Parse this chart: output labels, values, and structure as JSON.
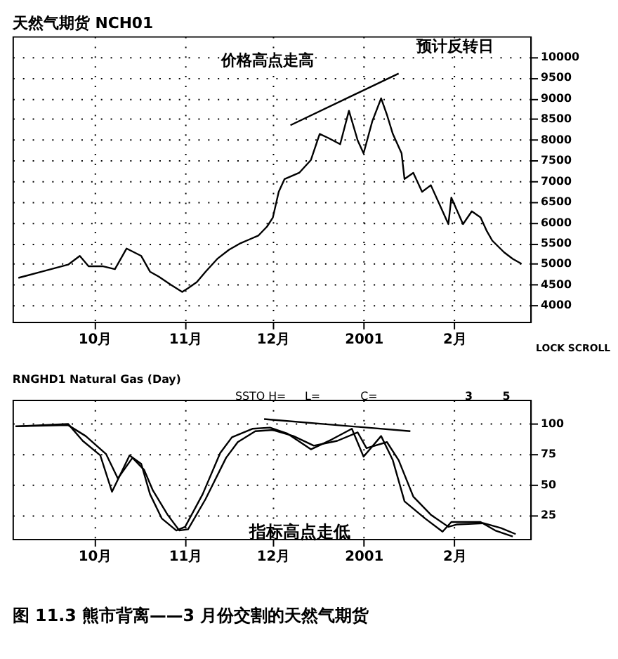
{
  "chart_data": [
    {
      "type": "line",
      "title": "天然气期货 NCH01",
      "annotations": [
        "价格高点走高",
        "预计反转日",
        "LOCK SCROLL"
      ],
      "xlim": [
        "2000-09-03",
        "2001-02-27"
      ],
      "xticks": [
        {
          "value": "2000-10-01",
          "label": "10月"
        },
        {
          "value": "2000-11-01",
          "label": "11月"
        },
        {
          "value": "2000-12-01",
          "label": "12月"
        },
        {
          "value": "2001-01-01",
          "label": "2001"
        },
        {
          "value": "2001-02-01",
          "label": "2月"
        }
      ],
      "ylim": [
        3600,
        10500
      ],
      "yticks": [
        4000,
        4500,
        5000,
        5500,
        6000,
        6500,
        7000,
        7500,
        8000,
        8500,
        9000,
        9500,
        10000
      ],
      "grid": true,
      "series": [
        {
          "color": "#000000",
          "x": [
            "2000-09-05",
            "2000-09-13",
            "2000-09-22",
            "2000-09-26",
            "2000-09-29",
            "2000-10-04",
            "2000-10-08",
            "2000-10-12",
            "2000-10-17",
            "2000-10-20",
            "2000-10-23",
            "2000-10-27",
            "2000-10-31",
            "2000-11-02",
            "2000-11-05",
            "2000-11-08",
            "2000-11-12",
            "2000-11-16",
            "2000-11-20",
            "2000-11-23",
            "2000-11-26",
            "2000-11-29",
            "2000-12-01",
            "2000-12-03",
            "2000-12-05",
            "2000-12-10",
            "2000-12-14",
            "2000-12-17",
            "2000-12-20",
            "2000-12-24",
            "2000-12-27",
            "2000-12-30",
            "2001-01-01",
            "2001-01-04",
            "2001-01-07",
            "2001-01-09",
            "2001-01-11",
            "2001-01-14",
            "2001-01-15",
            "2001-01-18",
            "2001-01-21",
            "2001-01-24",
            "2001-01-27",
            "2001-01-30",
            "2001-01-31",
            "2001-02-04",
            "2001-02-07",
            "2001-02-10",
            "2001-02-12",
            "2001-02-14",
            "2001-02-18",
            "2001-02-21",
            "2001-02-24"
          ],
          "values": [
            4660,
            4810,
            4980,
            5190,
            4940,
            4940,
            4870,
            5370,
            5190,
            4810,
            4690,
            4500,
            4320,
            4410,
            4560,
            4810,
            5120,
            5340,
            5500,
            5590,
            5680,
            5900,
            6120,
            6740,
            7050,
            7200,
            7510,
            8140,
            8040,
            7890,
            8700,
            7980,
            7670,
            8450,
            9000,
            8600,
            8140,
            7670,
            7050,
            7200,
            6740,
            6900,
            6430,
            5960,
            6600,
            5960,
            6270,
            6120,
            5810,
            5560,
            5280,
            5120,
            5000
          ]
        },
        {
          "type": "line",
          "color": "#000000",
          "x": [
            "2000-12-07",
            "2001-01-13"
          ],
          "values": [
            8350,
            9600
          ]
        }
      ]
    },
    {
      "type": "line",
      "title": "RNGHD1 Natural Gas (Day)",
      "annotations": [
        "SSTO H=",
        "L=",
        "C=",
        "3",
        "5",
        "指标高点走低",
        "图 11.3 熊市背离——3 月份交割的天然气期货"
      ],
      "xlim": [
        "2000-09-03",
        "2001-02-27"
      ],
      "xticks": [
        {
          "value": "2000-10-01",
          "label": "10月"
        },
        {
          "value": "2000-11-01",
          "label": "11月"
        },
        {
          "value": "2000-12-01",
          "label": "12月"
        },
        {
          "value": "2001-01-01",
          "label": "2001"
        },
        {
          "value": "2001-02-01",
          "label": "2月"
        }
      ],
      "ylim": [
        5,
        120
      ],
      "yticks": [
        25,
        50,
        75,
        100
      ],
      "grid": true,
      "series": [
        {
          "color": "#000000",
          "x": [
            "2000-09-04",
            "2000-09-22",
            "2000-09-27",
            "2000-10-03",
            "2000-10-07",
            "2000-10-13",
            "2000-10-17",
            "2000-10-20",
            "2000-10-24",
            "2000-10-29",
            "2000-11-01",
            "2000-11-07",
            "2000-11-13",
            "2000-11-17",
            "2000-11-24",
            "2000-11-30",
            "2000-12-06",
            "2000-12-14",
            "2000-12-21",
            "2000-12-28",
            "2001-01-01",
            "2001-01-07",
            "2001-01-11",
            "2001-01-15",
            "2001-01-22",
            "2001-01-28",
            "2001-01-31",
            "2001-02-10",
            "2001-02-15",
            "2001-02-21"
          ],
          "values": [
            98,
            100,
            86,
            74,
            44,
            74,
            67,
            42,
            22,
            12,
            15,
            42,
            76,
            89,
            96,
            97,
            92,
            79,
            87,
            96,
            73,
            90,
            70,
            36,
            22,
            11,
            19,
            19,
            12,
            7
          ]
        },
        {
          "color": "#000000",
          "x": [
            "2000-09-04",
            "2000-09-22",
            "2000-09-28",
            "2000-10-05",
            "2000-10-09",
            "2000-10-14",
            "2000-10-18",
            "2000-10-21",
            "2000-10-26",
            "2000-10-30",
            "2000-11-02",
            "2000-11-08",
            "2000-11-15",
            "2000-11-19",
            "2000-11-25",
            "2000-12-01",
            "2000-12-08",
            "2000-12-15",
            "2000-12-23",
            "2000-12-30",
            "2001-01-02",
            "2001-01-09",
            "2001-01-13",
            "2001-01-18",
            "2001-01-24",
            "2001-01-30",
            "2001-02-02",
            "2001-02-11",
            "2001-02-17",
            "2001-02-22"
          ],
          "values": [
            98,
            99,
            90,
            75,
            55,
            72,
            62,
            45,
            25,
            12,
            13,
            38,
            72,
            85,
            94,
            95,
            90,
            82,
            86,
            93,
            80,
            85,
            70,
            40,
            25,
            15,
            17,
            18,
            14,
            9
          ]
        },
        {
          "type": "line",
          "color": "#000000",
          "x": [
            "2000-11-28",
            "2001-01-17"
          ],
          "values": [
            104,
            94
          ]
        }
      ]
    }
  ]
}
